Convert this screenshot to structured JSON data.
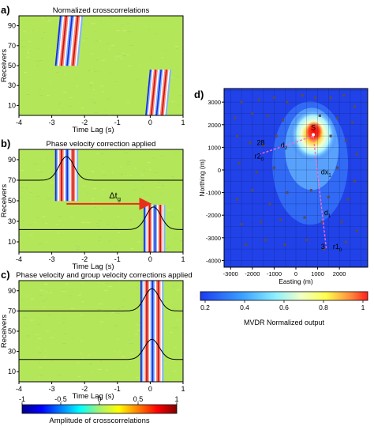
{
  "chart_data": [
    {
      "type": "heatmap",
      "panel_label": "a)",
      "title": "Normalized crosscorrelations",
      "xlabel": "Time Lag (s)",
      "ylabel": "Receivers",
      "xlim": [
        -4,
        1
      ],
      "ylim": [
        0,
        100
      ],
      "xticks": [
        "-4",
        "-3",
        "-2",
        "-1",
        "0",
        "1"
      ],
      "yticks": [
        "90",
        "70",
        "50",
        "30",
        "10"
      ],
      "wavefields": [
        {
          "receivers": [
            50,
            100
          ],
          "t_start": -2.9,
          "t_end": -2.2,
          "slope_s_per_receiver": 0.003
        },
        {
          "receivers": [
            0,
            46
          ],
          "t_start": -0.15,
          "t_end": 0.5,
          "slope_s_per_receiver": 0.003
        }
      ]
    },
    {
      "type": "heatmap",
      "panel_label": "b)",
      "title": "Phase velocity correction applied",
      "xlabel": "Time Lag (s)",
      "ylabel": "Receivers",
      "xlim": [
        -4,
        1
      ],
      "ylim": [
        0,
        100
      ],
      "xticks": [
        "-4",
        "-3",
        "-2",
        "-1",
        "0",
        "1"
      ],
      "yticks": [
        "90",
        "70",
        "50",
        "30",
        "10"
      ],
      "annotation": "Δt",
      "annotation_sub": "g",
      "wavefields": [
        {
          "receivers": [
            50,
            100
          ],
          "t_start": -2.9,
          "t_end": -2.2,
          "slope_s_per_receiver": 0
        },
        {
          "receivers": [
            0,
            46
          ],
          "t_start": -0.2,
          "t_end": 0.45,
          "slope_s_per_receiver": 0
        }
      ],
      "envelopes": [
        {
          "baseline": 70,
          "center": -2.55,
          "peak": 93
        },
        {
          "baseline": 22,
          "center": 0.1,
          "peak": 44
        }
      ],
      "arrow": {
        "from": [
          -2.55,
          47
        ],
        "to": [
          -0.05,
          47
        ]
      }
    },
    {
      "type": "heatmap",
      "panel_label": "c)",
      "title": "Phase velocity and group velocity corrections applied",
      "xlabel": "Time Lag (s)",
      "ylabel": "Receivers",
      "xlim": [
        -4,
        1
      ],
      "ylim": [
        0,
        100
      ],
      "xticks": [
        "-4",
        "-3",
        "-2",
        "-1",
        "0",
        "1"
      ],
      "yticks": [
        "90",
        "70",
        "50",
        "30",
        "10"
      ],
      "wavefields": [
        {
          "receivers": [
            0,
            100
          ],
          "t_start": -0.3,
          "t_end": 0.4,
          "slope_s_per_receiver": 0
        }
      ],
      "envelopes": [
        {
          "baseline": 70,
          "center": 0.05,
          "peak": 92
        },
        {
          "baseline": 22,
          "center": 0.05,
          "peak": 42
        }
      ],
      "colorbar": {
        "label": "Amplitude of crosscorrelations",
        "range": [
          -1,
          1
        ],
        "ticks": [
          "-1",
          "-0.5",
          "0",
          "0.5",
          "1"
        ]
      }
    },
    {
      "type": "heatmap",
      "panel_label": "d)",
      "xlabel": "Easting (m)",
      "ylabel": "Northing (m)",
      "xlim": [
        -3300,
        3300
      ],
      "ylim": [
        -4300,
        3600
      ],
      "xticks": [
        "-3000",
        "-2000",
        "-1000",
        "0",
        "1000",
        "2000"
      ],
      "yticks": [
        "3000",
        "2000",
        "1000",
        "0",
        "-1000",
        "-2000",
        "-3000",
        "-4000"
      ],
      "source": {
        "label": "S",
        "x": 800,
        "y": 1700
      },
      "grid": true,
      "labels": [
        {
          "text": "28",
          "x": -1800,
          "y": 1100
        },
        {
          "text": "r2",
          "sub": "0",
          "x": -1900,
          "y": 500
        },
        {
          "text": "d",
          "sub": "2",
          "x": -700,
          "y": 1000
        },
        {
          "text": "dx",
          "sub": "1",
          "x": 1150,
          "y": -200
        },
        {
          "text": "d",
          "sub": "1",
          "x": 1300,
          "y": -2000
        },
        {
          "text": "3",
          "x": 1150,
          "y": -3500
        },
        {
          "text": "r1",
          "sub": "0",
          "x": 1700,
          "y": -3500
        }
      ],
      "ray_paths": [
        {
          "from": [
            800,
            1500
          ],
          "to": [
            -1650,
            700
          ]
        },
        {
          "from": [
            800,
            1500
          ],
          "to": [
            1400,
            -3500
          ]
        }
      ],
      "receivers_xy": [
        [
          -2500,
          3000
        ],
        [
          -1700,
          3100
        ],
        [
          -1000,
          3200
        ],
        [
          -400,
          3000
        ],
        [
          300,
          3300
        ],
        [
          900,
          3200
        ],
        [
          1600,
          3200
        ],
        [
          2200,
          3300
        ],
        [
          2700,
          2800
        ],
        [
          -2800,
          2300
        ],
        [
          -2000,
          2500
        ],
        [
          -1300,
          2400
        ],
        [
          -600,
          2200
        ],
        [
          1100,
          2400
        ],
        [
          1900,
          2300
        ],
        [
          2600,
          2100
        ],
        [
          -2700,
          1500
        ],
        [
          -2100,
          1200
        ],
        [
          -1500,
          1100
        ],
        [
          -900,
          1500
        ],
        [
          1600,
          1500
        ],
        [
          2300,
          1300
        ],
        [
          2800,
          700
        ],
        [
          -2600,
          300
        ],
        [
          -1800,
          -100
        ],
        [
          -1000,
          100
        ],
        [
          1900,
          100
        ],
        [
          2700,
          -500
        ],
        [
          -2700,
          -1300
        ],
        [
          -2000,
          -900
        ],
        [
          -1200,
          -1500
        ],
        [
          -400,
          -1000
        ],
        [
          700,
          -900
        ],
        [
          1500,
          -1200
        ],
        [
          2400,
          -1300
        ],
        [
          -2500,
          -2400
        ],
        [
          -1600,
          -2300
        ],
        [
          -700,
          -2200
        ],
        [
          400,
          -2100
        ],
        [
          1200,
          -2300
        ],
        [
          2100,
          -2300
        ],
        [
          2800,
          -2700
        ],
        [
          -2300,
          -3300
        ],
        [
          -1400,
          -3100
        ],
        [
          -500,
          -3300
        ],
        [
          500,
          -3100
        ],
        [
          1300,
          -3500
        ],
        [
          2300,
          -3200
        ]
      ],
      "colorbar": {
        "label": "MVDR Normalized output",
        "range": [
          0.2,
          1
        ],
        "ticks": [
          "0.2",
          "0.4",
          "0.6",
          "0.8",
          "1"
        ]
      }
    }
  ]
}
